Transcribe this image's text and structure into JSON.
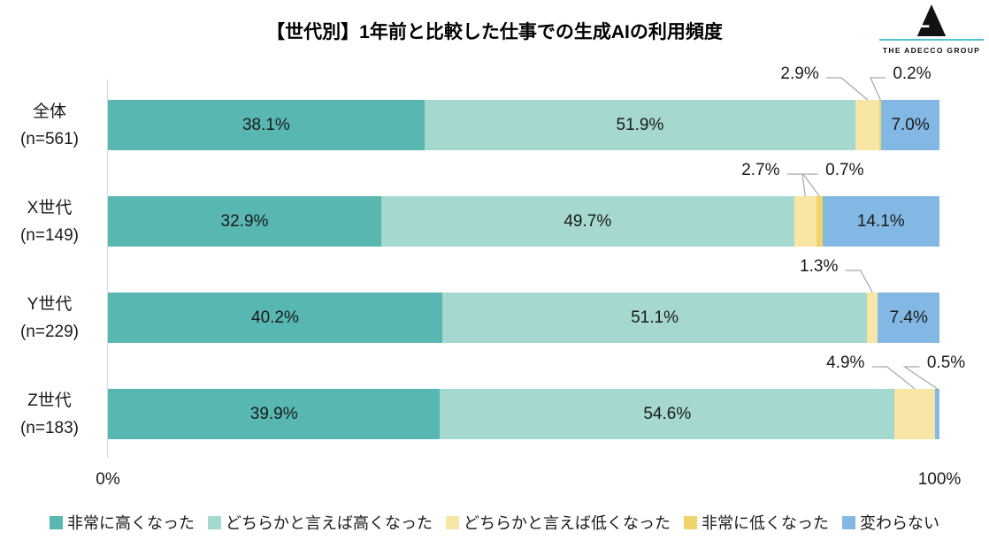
{
  "title": "【世代別】1年前と比較した仕事での生成AIの利用頻度",
  "logo": {
    "text": "THE ADECCO GROUP",
    "line_color": "#4EC3D4",
    "mark_color": "#111111"
  },
  "axis": {
    "min_label": "0%",
    "max_label": "100%"
  },
  "colors": {
    "axis_line": "#D9D9D9",
    "leader_line": "#A6A6A6",
    "background": "#FFFFFF"
  },
  "chart_data": {
    "type": "bar",
    "stacked": true,
    "orientation": "horizontal",
    "title": "【世代別】1年前と比較した仕事での生成AIの利用頻度",
    "categories": [
      "全体",
      "X世代",
      "Y世代",
      "Z世代"
    ],
    "category_n": [
      "(n=561)",
      "(n=149)",
      "(n=229)",
      "(n=183)"
    ],
    "xlim": [
      0,
      100
    ],
    "value_suffix": "%",
    "grid": false,
    "legend_position": "bottom",
    "series": [
      {
        "name": "非常に高くなった",
        "color": "#59B7B1",
        "values": [
          38.1,
          32.9,
          40.2,
          39.9
        ]
      },
      {
        "name": "どちらかと言えば高くなった",
        "color": "#A5D8CF",
        "values": [
          51.9,
          49.7,
          51.1,
          54.6
        ]
      },
      {
        "name": "どちらかと言えば低くなった",
        "color": "#F7E6A5",
        "values": [
          2.9,
          2.7,
          1.3,
          4.9
        ]
      },
      {
        "name": "非常に低くなった",
        "color": "#EFD469",
        "values": [
          0.2,
          0.7,
          0.0,
          0.0
        ]
      },
      {
        "name": "変わらない",
        "color": "#84B8E4",
        "values": [
          7.0,
          14.1,
          7.4,
          0.5
        ]
      }
    ],
    "annotations": [
      {
        "row": 0,
        "series": 2,
        "text": "2.9%",
        "label_pct": 83.2,
        "side": "left"
      },
      {
        "row": 0,
        "series": 3,
        "text": "0.2%",
        "label_pct": 96.7,
        "side": "right"
      },
      {
        "row": 1,
        "series": 2,
        "text": "2.7%",
        "label_pct": 78.5,
        "side": "left"
      },
      {
        "row": 1,
        "series": 3,
        "text": "0.7%",
        "label_pct": 88.6,
        "side": "right"
      },
      {
        "row": 2,
        "series": 2,
        "text": "1.3%",
        "label_pct": 85.5,
        "side": "left"
      },
      {
        "row": 3,
        "series": 2,
        "text": "4.9%",
        "label_pct": 88.7,
        "side": "left"
      },
      {
        "row": 3,
        "series": 4,
        "text": "0.5%",
        "label_pct": 100.8,
        "side": "right"
      }
    ],
    "inside_label_min_value": 6
  }
}
